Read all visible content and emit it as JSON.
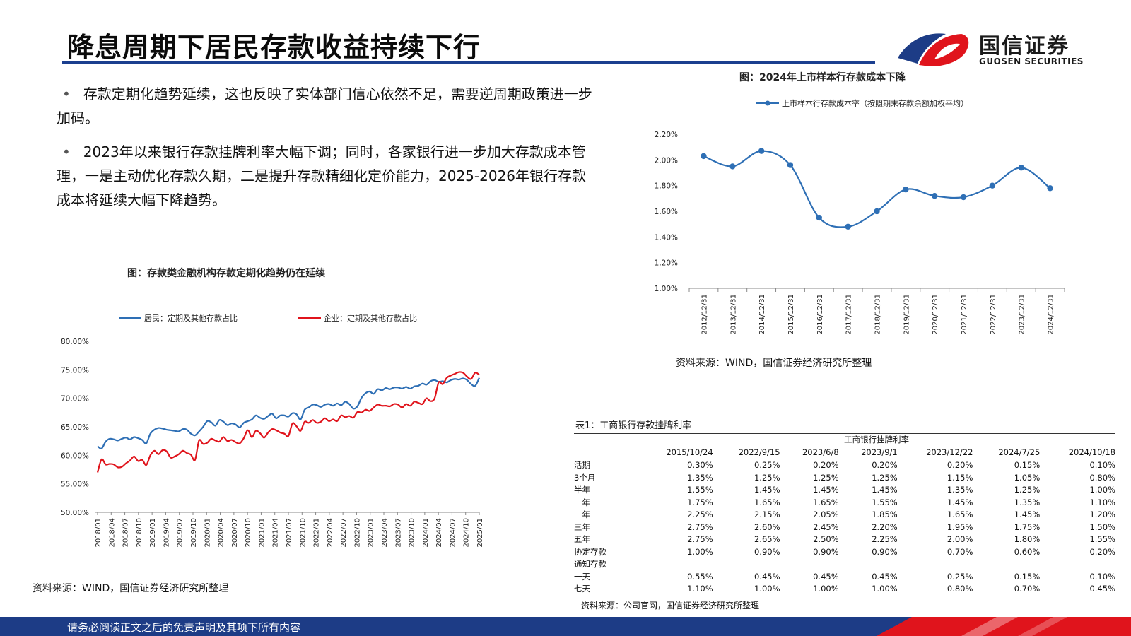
{
  "header": {
    "title": "降息周期下居民存款收益持续下行",
    "logo_cn": "国信证券",
    "logo_en": "GUOSEN SECURITIES"
  },
  "bullets": [
    "存款定期化趋势延续，这也反映了实体部门信心依然不足，需要逆周期政策进一步加码。",
    "2023年以来银行存款挂牌利率大幅下调；同时，各家银行进一步加大存款成本管理，一是主动优化存款久期，二是提升存款精细化定价能力，2025-2026年银行存款成本将延续大幅下降趋势。"
  ],
  "left_chart": {
    "title": "图：存款类金融机构存款定期化趋势仍在延续",
    "source": "资料来源：WIND，国信证券经济研究所整理"
  },
  "right_chart": {
    "title": "图：2024年上市样本行存款成本下降",
    "source": "资料来源：WIND，国信证券经济研究所整理"
  },
  "chart_data": [
    {
      "type": "line",
      "title": "图：存款类金融机构存款定期化趋势仍在延续",
      "x_tick_labels": [
        "2018/01",
        "2018/04",
        "2018/07",
        "2018/10",
        "2019/01",
        "2019/04",
        "2019/07",
        "2019/10",
        "2020/01",
        "2020/04",
        "2020/07",
        "2020/10",
        "2021/01",
        "2021/04",
        "2021/07",
        "2021/10",
        "2022/01",
        "2022/04",
        "2022/07",
        "2022/10",
        "2023/01",
        "2023/04",
        "2023/07",
        "2023/10",
        "2024/01",
        "2024/04",
        "2024/07",
        "2024/10",
        "2025/01"
      ],
      "y_tick_labels": [
        "50.00%",
        "55.00%",
        "60.00%",
        "65.00%",
        "70.00%",
        "75.00%",
        "80.00%"
      ],
      "ylim": [
        50,
        80
      ],
      "legend_position": "top",
      "grid": false,
      "series": [
        {
          "name": "居民：定期及其他存款占比",
          "color": "#2e6fb5",
          "values": [
            61.6,
            61.2,
            62.4,
            62.9,
            62.8,
            62.6,
            62.9,
            63.1,
            62.8,
            63.2,
            63.0,
            62.7,
            62.1,
            63.8,
            64.5,
            64.8,
            64.7,
            64.5,
            64.4,
            64.3,
            64.2,
            64.6,
            64.5,
            63.8,
            63.5,
            64.2,
            65.0,
            66.0,
            65.8,
            65.2,
            66.2,
            65.9,
            65.3,
            65.6,
            65.4,
            64.9,
            65.7,
            66.0,
            66.3,
            67.0,
            66.6,
            66.4,
            66.9,
            67.3,
            66.5,
            67.0,
            67.0,
            66.8,
            67.4,
            67.2,
            66.3,
            68.0,
            68.4,
            68.9,
            68.8,
            68.5,
            68.9,
            69.0,
            68.7,
            69.1,
            68.8,
            69.4,
            69.0,
            68.2,
            68.6,
            70.1,
            70.9,
            71.2,
            70.8,
            71.6,
            71.4,
            71.8,
            71.6,
            71.9,
            71.9,
            71.7,
            72.0,
            71.7,
            72.1,
            72.2,
            72.6,
            72.4,
            73.0,
            73.2,
            72.9,
            73.0,
            72.8,
            73.2,
            73.4,
            73.3,
            73.5,
            73.2,
            72.5,
            72.2,
            73.6
          ]
        },
        {
          "name": "企业：定期及其他存款占比",
          "color": "#e0141c",
          "values": [
            57.0,
            59.3,
            58.4,
            58.5,
            58.4,
            57.9,
            58.0,
            58.6,
            59.1,
            59.8,
            59.0,
            59.2,
            58.3,
            60.0,
            60.8,
            60.2,
            60.9,
            60.7,
            59.6,
            59.8,
            60.2,
            60.8,
            60.4,
            60.1,
            59.2,
            62.6,
            62.0,
            62.2,
            62.9,
            62.6,
            62.4,
            63.2,
            62.5,
            62.7,
            62.3,
            62.1,
            63.0,
            64.4,
            63.2,
            64.3,
            63.9,
            63.1,
            64.0,
            64.6,
            64.4,
            64.0,
            63.8,
            63.4,
            65.6,
            65.1,
            64.3,
            65.9,
            65.7,
            66.2,
            65.7,
            65.9,
            66.5,
            66.0,
            66.3,
            66.0,
            67.0,
            66.7,
            66.9,
            66.6,
            67.6,
            67.5,
            68.0,
            67.8,
            68.4,
            68.9,
            68.7,
            68.7,
            68.6,
            69.0,
            68.9,
            68.4,
            69.0,
            68.7,
            69.4,
            69.2,
            69.0,
            70.0,
            69.5,
            70.0,
            72.8,
            72.5,
            73.6,
            74.0,
            74.3,
            74.6,
            74.5,
            73.8,
            73.4,
            74.5,
            74.1
          ]
        }
      ]
    },
    {
      "type": "line",
      "title": "图：2024年上市样本行存款成本下降",
      "categories": [
        "2012/12/31",
        "2013/12/31",
        "2014/12/31",
        "2015/12/31",
        "2016/12/31",
        "2017/12/31",
        "2018/12/31",
        "2019/12/31",
        "2020/12/31",
        "2021/12/31",
        "2022/12/31",
        "2023/12/31",
        "2024/12/31"
      ],
      "y_tick_labels": [
        "1.00%",
        "1.20%",
        "1.40%",
        "1.60%",
        "1.80%",
        "2.00%",
        "2.20%"
      ],
      "ylim": [
        1.0,
        2.2
      ],
      "legend_position": "top",
      "grid": false,
      "series": [
        {
          "name": "上市样本行存款成本率（按照期末存款余额加权平均）",
          "color": "#2e6fb5",
          "values": [
            2.03,
            1.95,
            2.07,
            1.96,
            1.55,
            1.48,
            1.6,
            1.77,
            1.72,
            1.71,
            1.8,
            1.94,
            1.78
          ]
        }
      ]
    }
  ],
  "rate_table": {
    "title": "表1：工商银行存款挂牌利率",
    "group_header": "工商银行挂牌利率",
    "dates": [
      "2015/10/24",
      "2022/9/15",
      "2023/6/8",
      "2023/9/1",
      "2023/12/22",
      "2024/7/25",
      "2024/10/18"
    ],
    "rows": [
      {
        "name": "活期",
        "values": [
          "0.30%",
          "0.25%",
          "0.20%",
          "0.20%",
          "0.20%",
          "0.15%",
          "0.10%"
        ]
      },
      {
        "name": "3个月",
        "values": [
          "1.35%",
          "1.25%",
          "1.25%",
          "1.25%",
          "1.15%",
          "1.05%",
          "0.80%"
        ]
      },
      {
        "name": "半年",
        "values": [
          "1.55%",
          "1.45%",
          "1.45%",
          "1.45%",
          "1.35%",
          "1.25%",
          "1.00%"
        ]
      },
      {
        "name": "一年",
        "values": [
          "1.75%",
          "1.65%",
          "1.65%",
          "1.55%",
          "1.45%",
          "1.35%",
          "1.10%"
        ]
      },
      {
        "name": "二年",
        "values": [
          "2.25%",
          "2.15%",
          "2.05%",
          "1.85%",
          "1.65%",
          "1.45%",
          "1.20%"
        ]
      },
      {
        "name": "三年",
        "values": [
          "2.75%",
          "2.60%",
          "2.45%",
          "2.20%",
          "1.95%",
          "1.75%",
          "1.50%"
        ]
      },
      {
        "name": "五年",
        "values": [
          "2.75%",
          "2.65%",
          "2.50%",
          "2.25%",
          "2.00%",
          "1.80%",
          "1.55%"
        ]
      },
      {
        "name": "协定存款",
        "values": [
          "1.00%",
          "0.90%",
          "0.90%",
          "0.90%",
          "0.70%",
          "0.60%",
          "0.20%"
        ]
      },
      {
        "name": "通知存款",
        "values": [
          "",
          "",
          "",
          "",
          "",
          "",
          ""
        ]
      },
      {
        "name": "一天",
        "values": [
          "0.55%",
          "0.45%",
          "0.45%",
          "0.45%",
          "0.25%",
          "0.15%",
          "0.10%"
        ]
      },
      {
        "name": "七天",
        "values": [
          "1.10%",
          "1.00%",
          "1.00%",
          "1.00%",
          "0.80%",
          "0.70%",
          "0.45%"
        ]
      }
    ],
    "source": "资料来源：公司官网，国信证券经济研究所整理"
  },
  "footer": {
    "disclaimer": "请务必阅读正文之后的免责声明及其项下所有内容"
  }
}
